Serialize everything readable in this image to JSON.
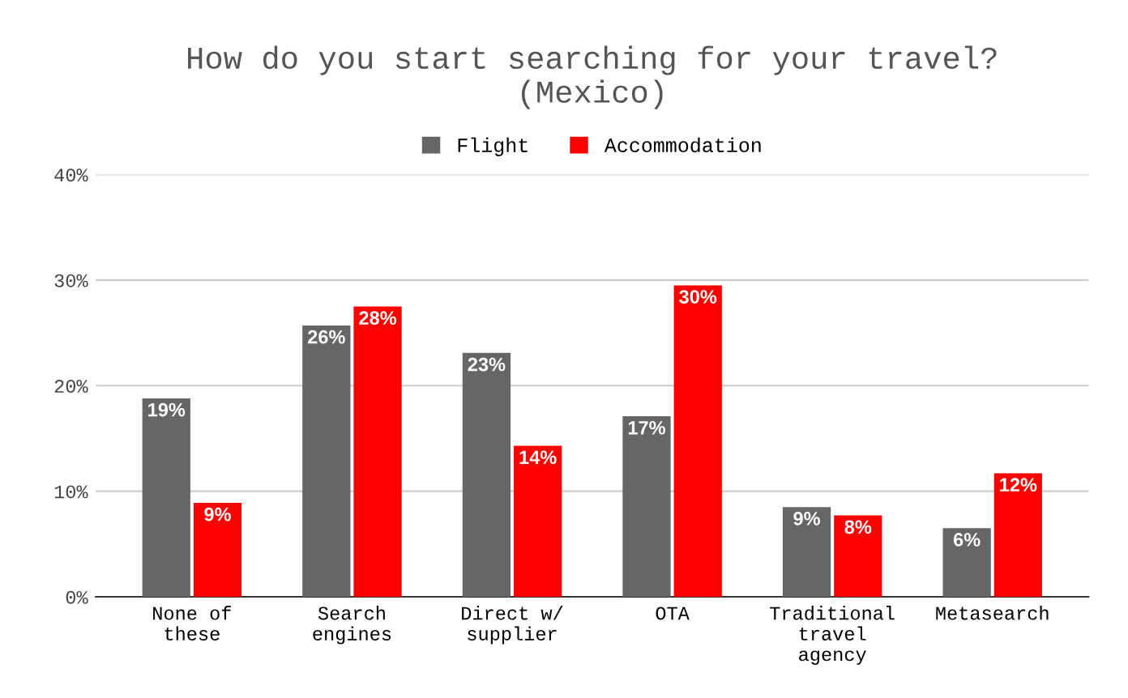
{
  "chart_data": {
    "type": "bar",
    "title": "How do you start searching for your travel?\n(Mexico)",
    "categories": [
      "None of\nthese",
      "Search\nengines",
      "Direct w/\nsupplier",
      "OTA",
      "Traditional\ntravel\nagency",
      "Metasearch"
    ],
    "series": [
      {
        "name": "Flight",
        "color": "#666666",
        "values": [
          18.8,
          25.7,
          23.1,
          17.1,
          8.5,
          6.5
        ],
        "value_labels": [
          "19%",
          "26%",
          "23%",
          "17%",
          "9%",
          "6%"
        ]
      },
      {
        "name": "Accommodation",
        "color": "#ff0000",
        "values": [
          8.9,
          27.5,
          14.3,
          29.5,
          7.7,
          11.7
        ],
        "value_labels": [
          "9%",
          "28%",
          "14%",
          "30%",
          "8%",
          "12%"
        ]
      }
    ],
    "ylim": [
      0,
      40
    ],
    "yticks": [
      {
        "value": 0,
        "label": "0%"
      },
      {
        "value": 10,
        "label": "10%"
      },
      {
        "value": 20,
        "label": "20%"
      },
      {
        "value": 30,
        "label": "30%"
      },
      {
        "value": 40,
        "label": "40%"
      }
    ],
    "grid": "y",
    "legend": "top"
  }
}
